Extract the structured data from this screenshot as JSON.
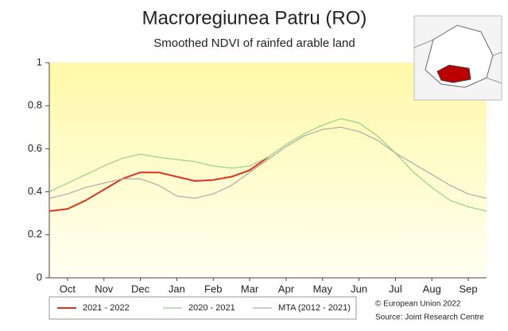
{
  "chart_data": {
    "type": "line",
    "title": "Macroregiunea Patru (RO)",
    "subtitle": "Smoothed NDVI of rainfed arable land",
    "x": [
      0,
      0.5,
      1,
      1.5,
      2,
      2.5,
      3,
      3.5,
      4,
      4.5,
      5,
      5.5,
      6,
      6.5,
      7,
      7.5,
      8,
      8.5,
      9,
      9.5,
      10,
      10.5,
      11,
      11.5,
      12
    ],
    "xlim": [
      0,
      12
    ],
    "xticks": [
      {
        "value": 0.5,
        "label": "Oct"
      },
      {
        "value": 1.5,
        "label": "Nov"
      },
      {
        "value": 2.5,
        "label": "Dec"
      },
      {
        "value": 3.5,
        "label": "Jan"
      },
      {
        "value": 4.5,
        "label": "Feb"
      },
      {
        "value": 5.5,
        "label": "Mar"
      },
      {
        "value": 6.5,
        "label": "Apr"
      },
      {
        "value": 7.5,
        "label": "May"
      },
      {
        "value": 8.5,
        "label": "Jun"
      },
      {
        "value": 9.5,
        "label": "Jul"
      },
      {
        "value": 10.5,
        "label": "Aug"
      },
      {
        "value": 11.5,
        "label": "Sep"
      }
    ],
    "ylim": [
      0,
      1
    ],
    "yticks": [
      0,
      0.2,
      0.4,
      0.6,
      0.8,
      1
    ],
    "series": [
      {
        "name": "2021 - 2022",
        "color": "#e0301e",
        "width": 2,
        "values": [
          0.31,
          0.32,
          0.36,
          0.41,
          0.46,
          0.49,
          0.49,
          0.47,
          0.45,
          0.455,
          0.47,
          0.5,
          0.56,
          null,
          null,
          null,
          null,
          null,
          null,
          null,
          null,
          null,
          null,
          null,
          null
        ]
      },
      {
        "name": "2020 - 2021",
        "color": "#8fd18a",
        "width": 1.2,
        "values": [
          0.4,
          0.44,
          0.48,
          0.52,
          0.555,
          0.575,
          0.56,
          0.55,
          0.54,
          0.52,
          0.51,
          0.52,
          0.56,
          0.62,
          0.67,
          0.71,
          0.74,
          0.72,
          0.66,
          0.58,
          0.49,
          0.42,
          0.36,
          0.33,
          0.31
        ]
      },
      {
        "name": "MTA (2012 - 2021)",
        "color": "#aaaaaa",
        "width": 1.2,
        "values": [
          0.37,
          0.39,
          0.42,
          0.44,
          0.46,
          0.46,
          0.43,
          0.38,
          0.37,
          0.39,
          0.43,
          0.49,
          0.55,
          0.61,
          0.66,
          0.69,
          0.7,
          0.68,
          0.64,
          0.58,
          0.53,
          0.48,
          0.43,
          0.39,
          0.37
        ]
      }
    ],
    "credits": [
      "© European Union 2022",
      "Source: Joint Research Centre"
    ]
  }
}
